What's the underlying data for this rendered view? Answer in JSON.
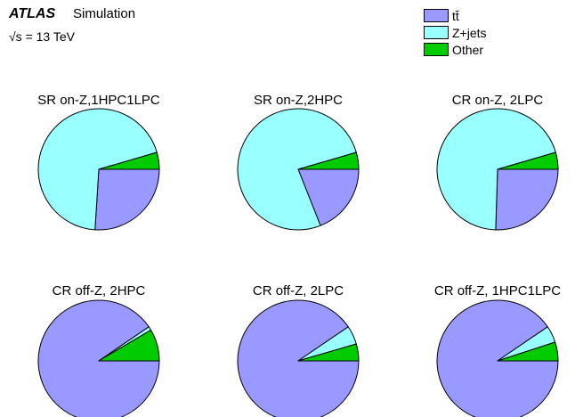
{
  "header": {
    "experiment": "ATLAS",
    "status": "Simulation",
    "energy": "√s = 13 TeV"
  },
  "chart_data": [
    {
      "type": "pie",
      "title": "SR on-Z,1HPC1LPC",
      "categories": [
        "tt̄",
        "Z+jets",
        "Other"
      ],
      "values": [
        26.0,
        69.5,
        4.5
      ]
    },
    {
      "type": "pie",
      "title": "SR on-Z,2HPC",
      "categories": [
        "tt̄",
        "Z+jets",
        "Other"
      ],
      "values": [
        19.0,
        76.5,
        4.5
      ]
    },
    {
      "type": "pie",
      "title": "CR on-Z, 2LPC",
      "categories": [
        "tt̄",
        "Z+jets",
        "Other"
      ],
      "values": [
        25.5,
        70.0,
        4.5
      ]
    },
    {
      "type": "pie",
      "title": "CR off-Z, 2HPC",
      "categories": [
        "tt̄",
        "Z+jets",
        "Other"
      ],
      "values": [
        90.5,
        1.0,
        8.5
      ]
    },
    {
      "type": "pie",
      "title": "CR off-Z, 2LPC",
      "categories": [
        "tt̄",
        "Z+jets",
        "Other"
      ],
      "values": [
        90.5,
        5.0,
        4.5
      ]
    },
    {
      "type": "pie",
      "title": "CR off-Z, 1HPC1LPC",
      "categories": [
        "tt̄",
        "Z+jets",
        "Other"
      ],
      "values": [
        90.5,
        4.5,
        5.0
      ]
    }
  ],
  "legend": {
    "entries": [
      {
        "label": "tt̄",
        "color": "#9999ff"
      },
      {
        "label": "Z+jets",
        "color": "#99ffff"
      },
      {
        "label": "Other",
        "color": "#00cc00"
      }
    ]
  }
}
